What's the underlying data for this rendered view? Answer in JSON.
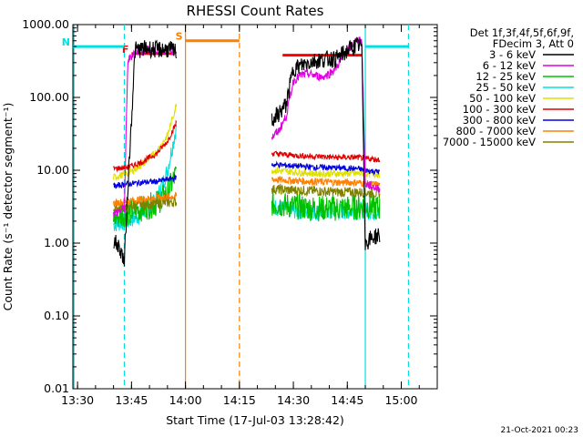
{
  "chart_data": {
    "type": "line",
    "title": "RHESSI Count Rates",
    "xlabel": "Start Time (17-Jul-03 13:28:42)",
    "ylabel": "Count Rate (s⁻¹ detector segment⁻¹)",
    "yscale": "log",
    "ylim": [
      0.01,
      1000
    ],
    "xlim": [
      "13:28:42",
      "15:10:00"
    ],
    "x_ticks": [
      "13:30",
      "13:45",
      "14:00",
      "14:15",
      "14:30",
      "14:45",
      "15:00"
    ],
    "y_ticks": [
      "0.01",
      "0.10",
      "1.00",
      "10.00",
      "100.00",
      "1000.00"
    ],
    "grid": false,
    "legend": {
      "position": "right",
      "header": [
        "Det 1f,3f,4f,5f,6f,9f,",
        "FDecim 3, Att 0"
      ]
    },
    "series": [
      {
        "name": "3 - 6 keV",
        "color": "#000000",
        "x": [
          "13:40",
          "13:42",
          "13:43",
          "13:44",
          "13:46",
          "13:48",
          "13:50",
          "13:52",
          "13:54",
          "13:56",
          "13:57:30",
          "14:24",
          "14:26",
          "14:28",
          "14:30",
          "14:32",
          "14:34",
          "14:36",
          "14:38",
          "14:40",
          "14:42",
          "14:44",
          "14:46",
          "14:48",
          "14:49",
          "14:50",
          "14:52",
          "14:54"
        ],
        "y": [
          1.1,
          0.8,
          0.55,
          6.0,
          450,
          460,
          470,
          450,
          460,
          450,
          420,
          48,
          60,
          80,
          250,
          270,
          300,
          320,
          330,
          340,
          340,
          400,
          480,
          520,
          500,
          1.0,
          1.2,
          1.3
        ]
      },
      {
        "name": "6 - 12 keV",
        "color": "#e000e0",
        "x": [
          "13:40",
          "13:43",
          "13:44",
          "13:46",
          "13:50",
          "13:54",
          "13:57:30",
          "14:24",
          "14:26",
          "14:28",
          "14:30",
          "14:32",
          "14:34",
          "14:36",
          "14:38",
          "14:40",
          "14:42",
          "14:44",
          "14:46",
          "14:48",
          "14:49",
          "14:50",
          "14:54"
        ],
        "y": [
          2.5,
          3.0,
          320,
          430,
          440,
          450,
          440,
          28,
          35,
          55,
          170,
          200,
          210,
          200,
          190,
          210,
          260,
          380,
          500,
          640,
          600,
          6.5,
          5.5
        ]
      },
      {
        "name": "12 - 25 keV",
        "color": "#00c000",
        "x": [
          "13:40",
          "13:44",
          "13:48",
          "13:52",
          "13:55",
          "13:57:30",
          "14:24",
          "14:30",
          "14:36",
          "14:42",
          "14:48",
          "14:50",
          "14:54"
        ],
        "y": [
          2.2,
          2.6,
          3.0,
          3.5,
          5.0,
          9.0,
          3.5,
          3.2,
          3.0,
          3.0,
          3.1,
          3.3,
          3.0
        ]
      },
      {
        "name": "25 - 50 keV",
        "color": "#00e0e0",
        "x": [
          "13:40",
          "13:44",
          "13:48",
          "13:52",
          "13:55",
          "13:57:30",
          "14:24",
          "14:30",
          "14:36",
          "14:42",
          "14:48",
          "14:50",
          "14:54"
        ],
        "y": [
          1.8,
          2.0,
          2.5,
          4.0,
          10,
          40,
          3.2,
          2.8,
          2.7,
          2.7,
          2.8,
          2.8,
          2.6
        ]
      },
      {
        "name": "50 - 100 keV",
        "color": "#e0e000",
        "x": [
          "13:40",
          "13:44",
          "13:48",
          "13:52",
          "13:55",
          "13:57:30",
          "14:24",
          "14:30",
          "14:36",
          "14:42",
          "14:48",
          "14:50",
          "14:54"
        ],
        "y": [
          8.0,
          9.0,
          12,
          18,
          30,
          80,
          10,
          9.5,
          9.0,
          9.0,
          9.0,
          9.0,
          8.8
        ]
      },
      {
        "name": "100 - 300 keV",
        "color": "#e00000",
        "x": [
          "13:40",
          "13:44",
          "13:48",
          "13:52",
          "13:55",
          "13:57:30",
          "14:24",
          "14:30",
          "14:36",
          "14:42",
          "14:48",
          "14:50",
          "14:54"
        ],
        "y": [
          10.5,
          11,
          13,
          17,
          25,
          45,
          17,
          16,
          15.5,
          15,
          15,
          14.5,
          14
        ]
      },
      {
        "name": "300 - 800 keV",
        "color": "#0000e0",
        "x": [
          "13:40",
          "13:44",
          "13:48",
          "13:52",
          "13:55",
          "13:57:30",
          "14:24",
          "14:30",
          "14:36",
          "14:42",
          "14:48",
          "14:50",
          "14:54"
        ],
        "y": [
          6.0,
          6.5,
          6.8,
          7.0,
          7.5,
          8.0,
          12,
          11.5,
          11,
          10.8,
          10.5,
          10,
          9.5
        ]
      },
      {
        "name": "800 - 7000 keV",
        "color": "#ff8000",
        "x": [
          "13:40",
          "13:44",
          "13:48",
          "13:52",
          "13:55",
          "13:57:30",
          "14:24",
          "14:30",
          "14:36",
          "14:42",
          "14:48",
          "14:50",
          "14:54"
        ],
        "y": [
          3.5,
          3.8,
          4.0,
          4.2,
          4.3,
          4.4,
          7.5,
          7.2,
          7.0,
          6.8,
          6.8,
          6.5,
          6.3
        ]
      },
      {
        "name": "7000 - 15000 keV",
        "color": "#808000",
        "x": [
          "13:40",
          "13:44",
          "13:48",
          "13:52",
          "13:55",
          "13:57:30",
          "14:24",
          "14:30",
          "14:36",
          "14:42",
          "14:48",
          "14:50",
          "14:54"
        ],
        "y": [
          3.0,
          3.2,
          3.4,
          3.5,
          3.6,
          3.7,
          5.5,
          5.3,
          5.2,
          5.0,
          5.0,
          4.9,
          4.8
        ]
      }
    ],
    "annotations": [
      {
        "label": "F",
        "type": "flag",
        "color": "#ff0000",
        "x_start": "13:45",
        "x_end": "13:57",
        "y": 400
      },
      {
        "label": "S",
        "type": "flag",
        "color": "#ff8000",
        "x_start": "14:00",
        "x_end": "14:15",
        "y": 600
      },
      {
        "label": "N",
        "type": "flag",
        "color": "#00e0e0",
        "x_start": "13:28:42",
        "x_end": "13:43",
        "y": 500
      },
      {
        "label": "",
        "type": "flag",
        "color": "#ff0000",
        "x_start": "14:27",
        "x_end": "14:49",
        "y": 380
      },
      {
        "label": "",
        "type": "flag",
        "color": "#00e0e0",
        "x_start": "14:50",
        "x_end": "15:02",
        "y": 500
      }
    ],
    "vlines": [
      {
        "x": "13:29",
        "color": "#00e0e0",
        "style": "solid"
      },
      {
        "x": "13:43",
        "color": "#00e0e0",
        "style": "dashed"
      },
      {
        "x": "14:00",
        "color": "#ff8000",
        "style": "solid"
      },
      {
        "x": "14:15",
        "color": "#ff8000",
        "style": "dashed"
      },
      {
        "x": "14:50",
        "color": "#00e0e0",
        "style": "solid"
      },
      {
        "x": "15:02",
        "color": "#00e0e0",
        "style": "dashed"
      }
    ]
  },
  "footer": {
    "timestamp": "21-Oct-2021 00:23"
  }
}
